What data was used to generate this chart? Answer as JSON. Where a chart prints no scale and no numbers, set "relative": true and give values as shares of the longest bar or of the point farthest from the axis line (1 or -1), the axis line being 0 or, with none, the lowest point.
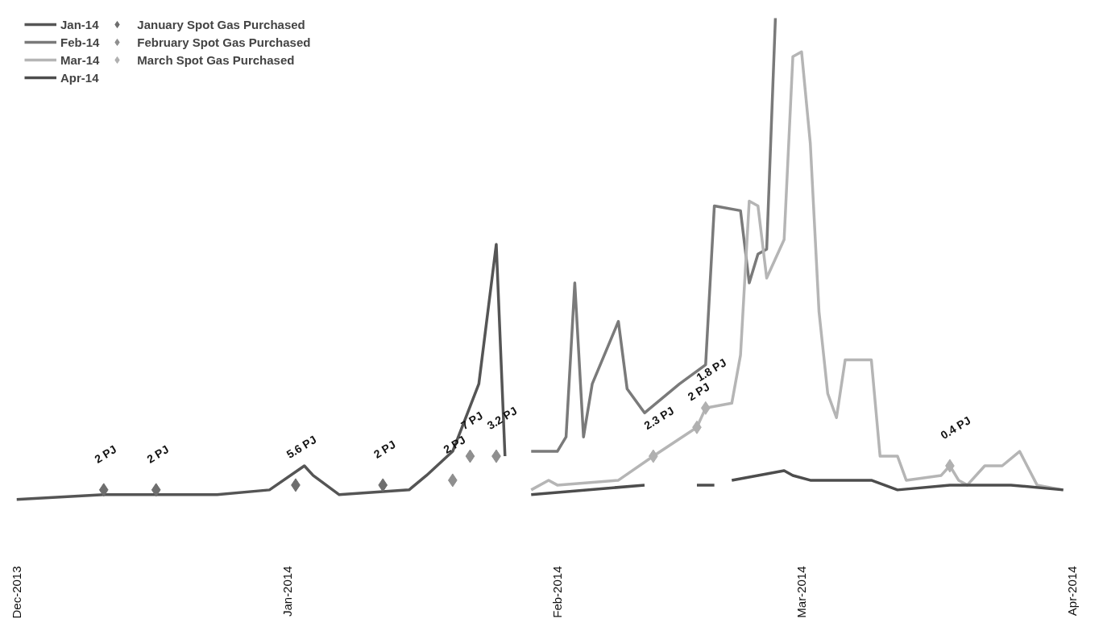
{
  "chart_data": {
    "type": "line",
    "relative": true,
    "legend": "top left",
    "line_style": "solid",
    "xlim": [
      "2013-12-01",
      "2014-04-01"
    ],
    "xticks": [
      {
        "value": "2013-12-01",
        "label": "Dec-2013"
      },
      {
        "value": "2014-01-01",
        "label": "Jan-2014"
      },
      {
        "value": "2014-02-01",
        "label": "Feb-2014"
      },
      {
        "value": "2014-03-01",
        "label": "Mar-2014"
      },
      {
        "value": "2014-04-01",
        "label": "Apr-2014"
      }
    ],
    "series": [
      {
        "name": "Jan-14",
        "color": "#555555",
        "x": [
          "2013-12-01",
          "2013-12-11",
          "2013-12-24",
          "2013-12-30",
          "2014-01-03",
          "2014-01-04",
          "2014-01-07",
          "2014-01-15",
          "2014-01-17",
          "2014-01-20",
          "2014-01-23",
          "2014-01-25",
          "2014-01-26"
        ],
        "values": [
          0,
          0.01,
          0.01,
          0.02,
          0.07,
          0.05,
          0.01,
          0.02,
          0.05,
          0.1,
          0.24,
          0.53,
          0.09
        ]
      },
      {
        "name": "Feb-14",
        "color": "#7a7a7a",
        "x": [
          "2014-01-29",
          "2014-02-01",
          "2014-02-02",
          "2014-02-03",
          "2014-02-04",
          "2014-02-05",
          "2014-02-08",
          "2014-02-09",
          "2014-02-11",
          "2014-02-15",
          "2014-02-18",
          "2014-02-19",
          "2014-02-22",
          "2014-02-23",
          "2014-02-24",
          "2014-02-25",
          "2014-02-26"
        ],
        "values": [
          0.1,
          0.1,
          0.13,
          0.45,
          0.13,
          0.24,
          0.37,
          0.23,
          0.18,
          0.24,
          0.28,
          0.61,
          0.6,
          0.45,
          0.51,
          0.52,
          1
        ]
      },
      {
        "name": "Mar-14",
        "color": "#b5b5b5",
        "x": [
          "2014-01-29",
          "2014-01-31",
          "2014-02-01",
          "2014-02-08",
          "2014-02-12",
          "2014-02-17",
          "2014-02-18",
          "2014-02-21",
          "2014-02-22",
          "2014-02-23",
          "2014-02-24",
          "2014-02-25",
          "2014-02-27",
          "2014-02-28",
          "2014-03-01",
          "2014-03-02",
          "2014-03-03",
          "2014-03-04",
          "2014-03-05",
          "2014-03-06",
          "2014-03-09",
          "2014-03-10",
          "2014-03-12",
          "2014-03-13",
          "2014-03-17",
          "2014-03-18",
          "2014-03-19",
          "2014-03-20",
          "2014-03-22",
          "2014-03-24",
          "2014-03-26",
          "2014-03-28",
          "2014-03-31"
        ],
        "values": [
          0.02,
          0.04,
          0.03,
          0.04,
          0.09,
          0.15,
          0.19,
          0.2,
          0.3,
          0.62,
          0.61,
          0.46,
          0.54,
          0.92,
          0.93,
          0.74,
          0.39,
          0.22,
          0.17,
          0.29,
          0.29,
          0.09,
          0.09,
          0.04,
          0.05,
          0.07,
          0.04,
          0.03,
          0.07,
          0.07,
          0.1,
          0.03,
          0.02
        ]
      },
      {
        "name": "Apr-14",
        "color": "#4d4d4d",
        "x": [
          "2014-01-29",
          "2014-02-11",
          "2014-02-14",
          "2014-02-17",
          "2014-02-19",
          "2014-02-20",
          "2014-02-21",
          "2014-02-27",
          "2014-02-28",
          "2014-03-02",
          "2014-03-09",
          "2014-03-12",
          "2014-03-18",
          "2014-03-25",
          "2014-03-31"
        ],
        "values": [
          0.01,
          0.03,
          null,
          0.03,
          0.03,
          null,
          0.04,
          0.06,
          0.05,
          0.04,
          0.04,
          0.02,
          0.03,
          0.03,
          0.02
        ]
      },
      {
        "name": "January Spot Gas Purchased",
        "type": "scatter",
        "marker": "diamond",
        "color": "#6e6e6e",
        "x": [
          "2013-12-11",
          "2013-12-17",
          "2014-01-02",
          "2014-01-12"
        ],
        "values": [
          0.02,
          0.02,
          0.03,
          0.03
        ]
      },
      {
        "name": "February Spot Gas Purchased",
        "type": "scatter",
        "marker": "diamond",
        "color": "#8f8f8f",
        "x": [
          "2014-01-20",
          "2014-01-22",
          "2014-01-25"
        ],
        "values": [
          0.04,
          0.09,
          0.09
        ]
      },
      {
        "name": "March Spot Gas Purchased",
        "type": "scatter",
        "marker": "diamond",
        "color": "#b0b0b0",
        "x": [
          "2014-02-12",
          "2014-02-17",
          "2014-02-18",
          "2014-03-18"
        ],
        "values": [
          0.09,
          0.15,
          0.19,
          0.07
        ]
      }
    ],
    "annotations": [
      {
        "text": "2 PJ",
        "x": "2013-12-11",
        "y": 0.02
      },
      {
        "text": "2 PJ",
        "x": "2013-12-17",
        "y": 0.02
      },
      {
        "text": "5.6 PJ",
        "x": "2014-01-02",
        "y": 0.03
      },
      {
        "text": "2 PJ",
        "x": "2014-01-12",
        "y": 0.03
      },
      {
        "text": "2 PJ",
        "x": "2014-01-20",
        "y": 0.04
      },
      {
        "text": "7 PJ",
        "x": "2014-01-22",
        "y": 0.09
      },
      {
        "text": "3.2 PJ",
        "x": "2014-01-25",
        "y": 0.09
      },
      {
        "text": "2.3 PJ",
        "x": "2014-02-12",
        "y": 0.09
      },
      {
        "text": "2 PJ",
        "x": "2014-02-17",
        "y": 0.15
      },
      {
        "text": "1.8 PJ",
        "x": "2014-02-18",
        "y": 0.19
      },
      {
        "text": "0.4 PJ",
        "x": "2014-03-18",
        "y": 0.07
      }
    ]
  }
}
